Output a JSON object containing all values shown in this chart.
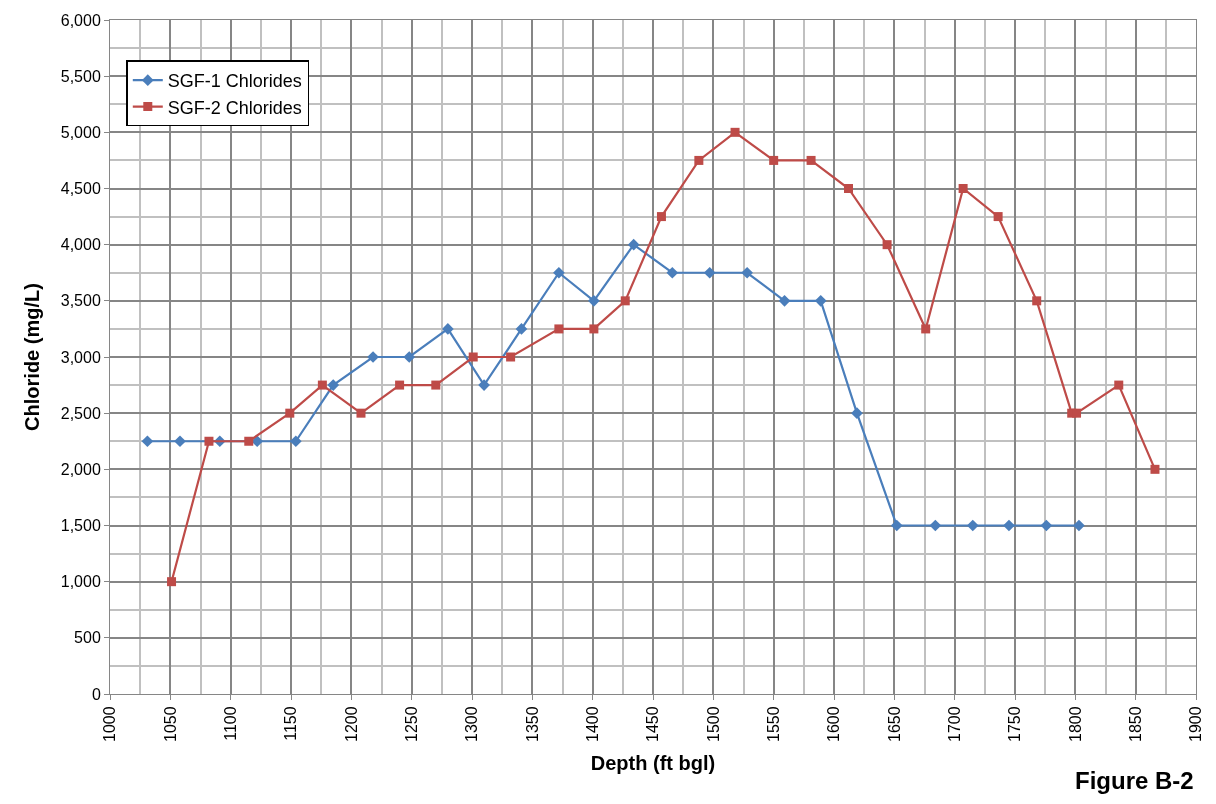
{
  "chart_data": {
    "type": "line",
    "xlabel": "Depth (ft bgl)",
    "ylabel": "Chloride (mg/L)",
    "annotations": [
      "Figure B-2"
    ],
    "series": [
      {
        "name": "SGF-1 Chlorides",
        "color": "#4a7ebb",
        "marker": "diamond",
        "x": [
          1031,
          1058,
          1091,
          1122,
          1154,
          1185,
          1218,
          1248,
          1280,
          1310,
          1341,
          1372,
          1401,
          1434,
          1466,
          1497,
          1528,
          1559,
          1589,
          1619,
          1652,
          1684,
          1715,
          1745,
          1776,
          1803
        ],
        "values": [
          2250,
          2250,
          2250,
          2250,
          2250,
          2750,
          3000,
          3000,
          3250,
          2750,
          3250,
          3750,
          3500,
          4000,
          3750,
          3750,
          3750,
          3500,
          3500,
          2500,
          1500,
          1500,
          1500,
          1500,
          1500,
          1500
        ]
      },
      {
        "name": "SGF-2 Chlorides",
        "color": "#be4b48",
        "marker": "square",
        "x": [
          1051,
          1082,
          1115,
          1149,
          1176,
          1208,
          1240,
          1270,
          1301,
          1332,
          1372,
          1401,
          1427,
          1457,
          1488,
          1518,
          1550,
          1581,
          1612,
          1644,
          1676,
          1707,
          1736,
          1768,
          1797,
          1801,
          1836,
          1866
        ],
        "values": [
          1000,
          2250,
          2250,
          2500,
          2750,
          2500,
          2750,
          2750,
          3000,
          3000,
          3250,
          3250,
          3500,
          4250,
          4750,
          5000,
          4750,
          4750,
          4500,
          4000,
          3250,
          4500,
          4250,
          3500,
          2500,
          2500,
          2750,
          2000
        ]
      }
    ],
    "xlim": [
      1000,
      1900
    ],
    "xticks": [
      1000,
      1050,
      1100,
      1150,
      1200,
      1250,
      1300,
      1350,
      1400,
      1450,
      1500,
      1550,
      1600,
      1650,
      1700,
      1750,
      1800,
      1850,
      1900
    ],
    "ylim": [
      0,
      6000
    ],
    "yticks": [
      {
        "value": 0,
        "label": "0"
      },
      {
        "value": 500,
        "label": "500"
      },
      {
        "value": 1000,
        "label": "1,000"
      },
      {
        "value": 1500,
        "label": "1,500"
      },
      {
        "value": 2000,
        "label": "2,000"
      },
      {
        "value": 2500,
        "label": "2,500"
      },
      {
        "value": 3000,
        "label": "3,000"
      },
      {
        "value": 3500,
        "label": "3,500"
      },
      {
        "value": 4000,
        "label": "4,000"
      },
      {
        "value": 4500,
        "label": "4,500"
      },
      {
        "value": 5000,
        "label": "5,000"
      },
      {
        "value": 5500,
        "label": "5,500"
      },
      {
        "value": 6000,
        "label": "6,000"
      }
    ],
    "grid": true,
    "legend": "top left",
    "line_style": "solid"
  }
}
